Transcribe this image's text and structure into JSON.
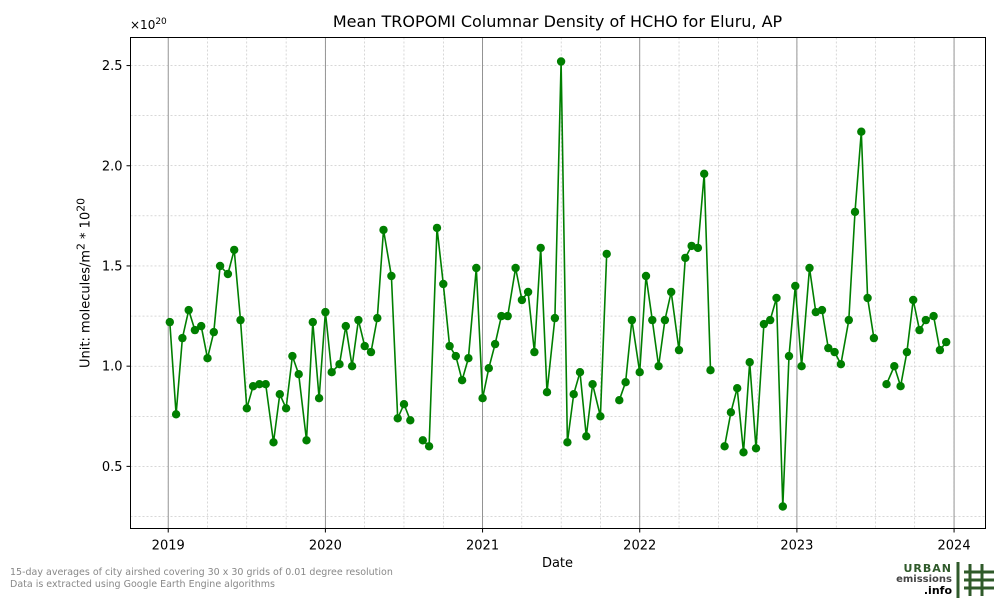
{
  "chart_data": {
    "type": "line",
    "title": "Mean TROPOMI Columnar Density of HCHO for Eluru, AP",
    "xlabel": "Date",
    "ylabel_text": "Unit: molecules/m",
    "ylabel_sup": "2",
    "ylabel_mid": " * 10",
    "ylabel_sup2": "20",
    "scale_base": "×10",
    "scale_exp": "20",
    "x_ticks": [
      "2019",
      "2020",
      "2021",
      "2022",
      "2023",
      "2024"
    ],
    "y_ticks": [
      "0.5",
      "1.0",
      "1.5",
      "2.0",
      "2.5"
    ],
    "xlim": [
      2018.76,
      2024.2
    ],
    "ylim": [
      0.19,
      2.64
    ],
    "grid": true,
    "series_color": "#007f00",
    "x": [
      2019.01,
      2019.05,
      2019.09,
      2019.13,
      2019.17,
      2019.21,
      2019.25,
      2019.29,
      2019.33,
      2019.38,
      2019.42,
      2019.46,
      2019.5,
      2019.54,
      2019.58,
      2019.62,
      2019.67,
      2019.71,
      2019.75,
      2019.79,
      2019.83,
      2019.88,
      2019.92,
      2019.96,
      2020.0,
      2020.04,
      2020.09,
      2020.13,
      2020.17,
      2020.21,
      2020.25,
      2020.29,
      2020.33,
      2020.37,
      2020.42,
      2020.46,
      2020.5,
      2020.54,
      2020.58,
      2020.62,
      2020.66,
      2020.71,
      2020.75,
      2020.79,
      2020.83,
      2020.87,
      2020.91,
      2020.96,
      2021.0,
      2021.04,
      2021.08,
      2021.12,
      2021.16,
      2021.21,
      2021.25,
      2021.29,
      2021.33,
      2021.37,
      2021.41,
      2021.46,
      2021.5,
      2021.54,
      2021.58,
      2021.62,
      2021.66,
      2021.7,
      2021.75,
      2021.79,
      2021.83,
      2021.87,
      2021.91,
      2021.95,
      2022.0,
      2022.04,
      2022.08,
      2022.12,
      2022.16,
      2022.2,
      2022.25,
      2022.29,
      2022.33,
      2022.37,
      2022.41,
      2022.45,
      2022.5,
      2022.54,
      2022.58,
      2022.62,
      2022.66,
      2022.7,
      2022.74,
      2022.79,
      2022.83,
      2022.87,
      2022.91,
      2022.95,
      2022.99,
      2023.03,
      2023.08,
      2023.12,
      2023.16,
      2023.2,
      2023.24,
      2023.28,
      2023.33,
      2023.37,
      2023.41,
      2023.45,
      2023.49,
      2023.53,
      2023.57,
      2023.62,
      2023.66,
      2023.7,
      2023.74,
      2023.78,
      2023.82,
      2023.87,
      2023.91,
      2023.95
    ],
    "values": [
      1.22,
      0.76,
      1.14,
      1.28,
      1.18,
      1.2,
      1.04,
      1.17,
      1.5,
      1.46,
      1.58,
      1.23,
      0.79,
      0.9,
      0.91,
      0.91,
      0.62,
      0.86,
      0.79,
      1.05,
      0.96,
      0.63,
      1.22,
      0.84,
      1.27,
      0.97,
      1.01,
      1.2,
      1.0,
      1.23,
      1.1,
      1.07,
      1.24,
      1.68,
      1.45,
      0.74,
      0.81,
      0.73,
      null,
      0.63,
      0.6,
      1.69,
      1.41,
      1.1,
      1.05,
      0.93,
      1.04,
      1.49,
      0.84,
      0.99,
      1.11,
      1.25,
      1.25,
      1.49,
      1.33,
      1.37,
      1.07,
      1.59,
      0.87,
      1.24,
      2.52,
      0.62,
      0.86,
      0.97,
      0.65,
      0.91,
      0.75,
      1.56,
      null,
      0.83,
      0.92,
      1.23,
      0.97,
      1.45,
      1.23,
      1.0,
      1.23,
      1.37,
      1.08,
      1.54,
      1.6,
      1.59,
      1.96,
      0.98,
      null,
      0.6,
      0.77,
      0.89,
      0.57,
      1.02,
      0.59,
      1.21,
      1.23,
      1.34,
      0.3,
      1.05,
      1.4,
      1.0,
      1.49,
      1.27,
      1.28,
      1.09,
      1.07,
      1.01,
      1.23,
      1.77,
      2.17,
      1.34,
      1.14,
      null,
      0.91,
      1.0,
      0.9,
      1.07,
      1.33,
      1.18,
      1.23,
      1.25,
      1.08,
      1.12
    ]
  },
  "footnote": {
    "line1": "15-day averages of city airshed covering 30 x 30 grids of 0.01 degree resolution",
    "line2": "Data is extracted using Google Earth Engine algorithms"
  },
  "logo": {
    "word1": "URBAN",
    "word2": "emissions",
    "word3": ".info",
    "accent": "#2f5a2a"
  }
}
